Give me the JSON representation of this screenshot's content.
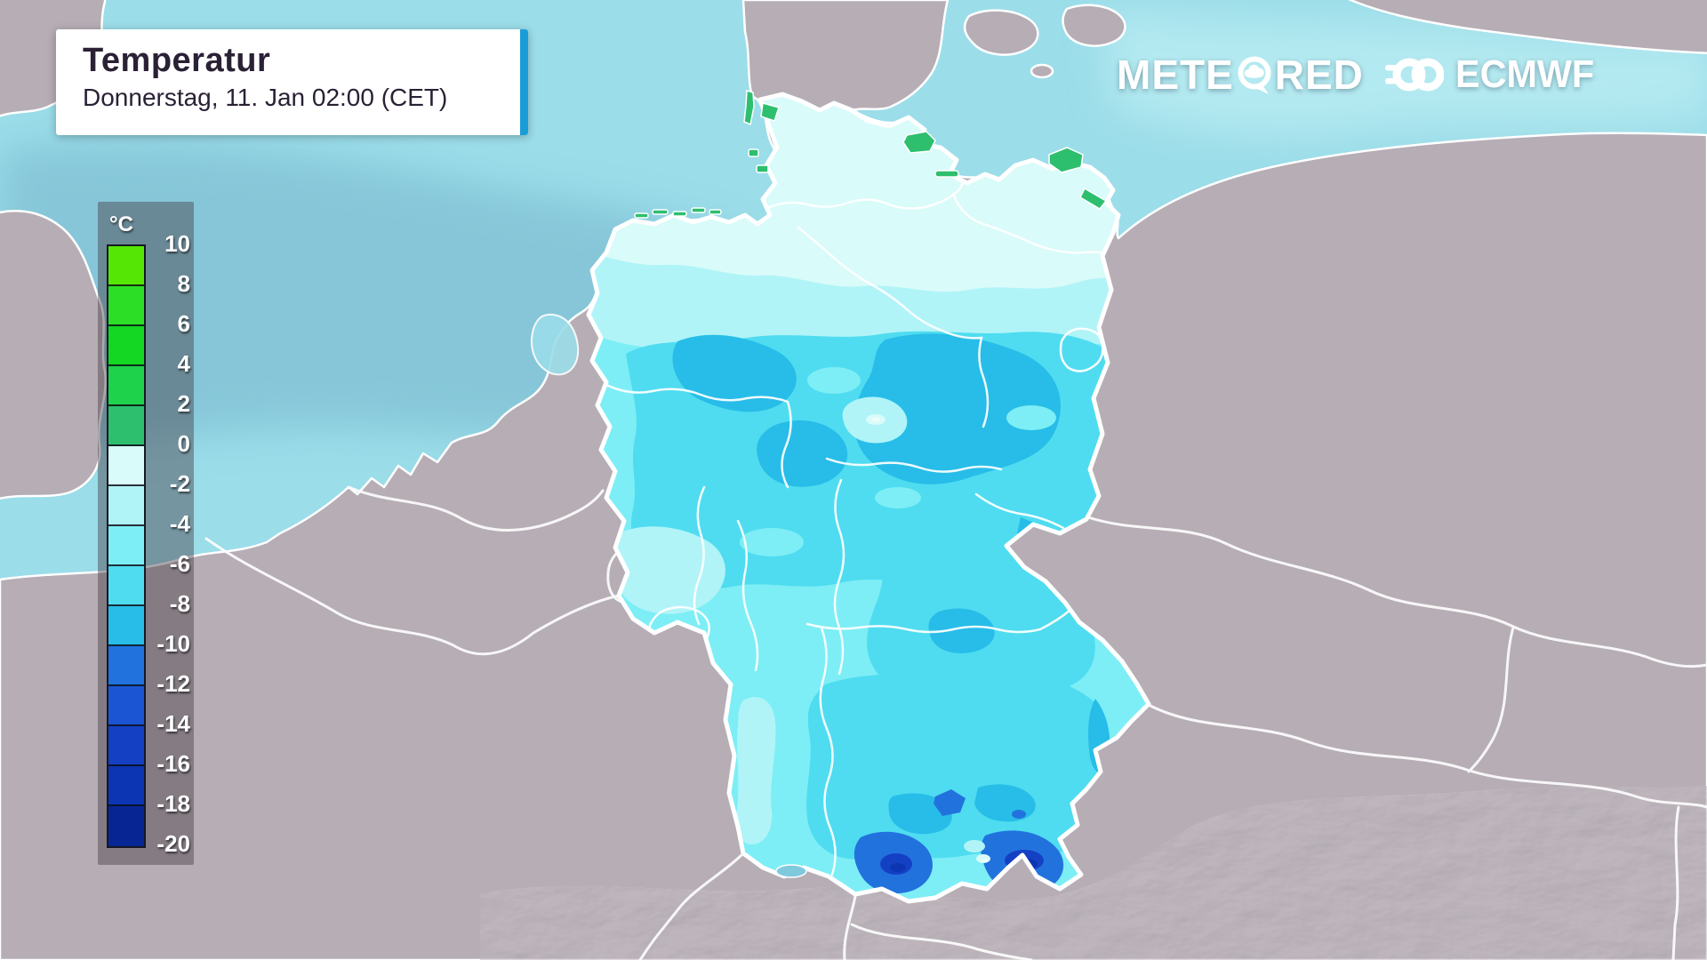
{
  "header": {
    "title": "Temperatur",
    "subtitle": "Donnerstag, 11. Jan 02:00 (CET)",
    "accent_color": "#199dd8"
  },
  "branding": {
    "meteored_pre": "METE",
    "meteored_post": "RED",
    "meteored_o_icon": "speech-bubble-cloud-icon",
    "ecmwf_icon": "interlocked-rings-icon",
    "ecmwf_label": "ECMWF"
  },
  "legend": {
    "unit": "°C",
    "tick_labels": [
      "10",
      "8",
      "6",
      "4",
      "2",
      "0",
      "-2",
      "-4",
      "-6",
      "-8",
      "-10",
      "-12",
      "-14",
      "-16",
      "-18",
      "-20"
    ],
    "band_colors": [
      "#56e606",
      "#2cdf26",
      "#13d722",
      "#1ed24c",
      "#2dbf6e",
      "#d9fbfa",
      "#b0f4f8",
      "#7deef5",
      "#4fdcf0",
      "#27bde8",
      "#2272de",
      "#1c55d3",
      "#1440c4",
      "#0c35b3",
      "#082693"
    ]
  },
  "map": {
    "region": "Germany and neighbouring countries",
    "colors": {
      "sea": "#9bdde9",
      "sea-shade": "#72b0c8",
      "sea-bright": "#c8f3f6",
      "land": "#b6adb5",
      "border": "#ffffff",
      "lake": "#7fc9dd"
    }
  }
}
